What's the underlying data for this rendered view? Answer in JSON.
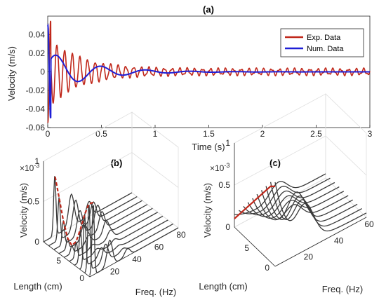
{
  "colors": {
    "exp": "#c0281b",
    "num": "#1f1fd6",
    "surface": "#3a3a3a",
    "ridge": "#c0281b",
    "grid": "#dedede",
    "axis": "#262626"
  },
  "chart_data": [
    {
      "panel": "a",
      "type": "line",
      "title": "(a)",
      "xlabel": "Time (s)",
      "ylabel": "Velocity (m/s)",
      "xlim": [
        0,
        3
      ],
      "ylim": [
        -0.06,
        0.06
      ],
      "xticks": [
        "0",
        "0.5",
        "1",
        "1.5",
        "2",
        "2.5",
        "3"
      ],
      "yticks": [
        "-0.06",
        "-0.04",
        "-0.02",
        "0",
        "0.02",
        "0.04"
      ],
      "legend_position": "top-right",
      "series": [
        {
          "name": "Exp. Data",
          "color": "#c0281b",
          "model": "decaying-oscillation",
          "amplitude": 0.036,
          "frequency_hz": 14,
          "decay": 3.5,
          "floor": 0.003
        },
        {
          "name": "Num. Data",
          "color": "#1f1fd6",
          "model": "decaying-oscillation",
          "amplitude": 0.022,
          "frequency_hz": 2.4,
          "decay": 2.6,
          "floor": 0.0
        }
      ]
    },
    {
      "panel": "b",
      "type": "waterfall",
      "title": "(b)",
      "exponent": "×10",
      "exponent_power": "-3",
      "xlabel": "Freq. (Hz)",
      "ylabel": "Length (cm)",
      "zlabel": "Velocity (m/s)",
      "xlim": [
        0,
        80
      ],
      "ylim": [
        0,
        10
      ],
      "zlim": [
        0,
        0.001
      ],
      "xticks": [
        "20",
        "40",
        "60",
        "80"
      ],
      "yticks": [
        "0",
        "5"
      ],
      "zticks": [
        "0",
        "0.5",
        "1"
      ],
      "peak_freqs_hz": [
        3,
        18,
        34
      ],
      "peak_heights": [
        0.0009,
        0.0004,
        0.00025
      ]
    },
    {
      "panel": "c",
      "type": "waterfall",
      "title": "(c)",
      "exponent": "×10",
      "exponent_power": "-3",
      "xlabel": "Freq. (Hz)",
      "ylabel": "Length (cm)",
      "zlabel": "Velocity (m/s)",
      "xlim": [
        0,
        60
      ],
      "ylim": [
        0,
        10
      ],
      "zlim": [
        0,
        0.001
      ],
      "xticks": [
        "20",
        "40",
        "60"
      ],
      "yticks": [
        "0",
        "5"
      ],
      "zticks": [
        "0",
        "0.5",
        "1"
      ],
      "start_values": [
        0.00095,
        0.0009,
        0.0008,
        0.0007,
        0.0006,
        0.0005,
        0.0004,
        0.0003,
        0.0002,
        0.0001
      ]
    }
  ]
}
